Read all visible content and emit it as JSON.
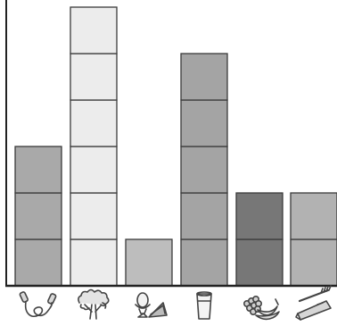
{
  "chart_data": {
    "type": "bar",
    "title": "",
    "xlabel": "",
    "ylabel": "",
    "categories": [
      "jump-rope",
      "broccoli",
      "egg-and-sandwich",
      "glass-of-milk",
      "bananas",
      "toothbrush-and-toothpaste"
    ],
    "values": [
      3,
      6,
      1,
      5,
      2,
      2
    ],
    "ylim": [
      0,
      6
    ],
    "grid": false,
    "bar_fills": [
      "#a9a9a9",
      "#ececec",
      "#bdbdbd",
      "#a4a4a4",
      "#777777",
      "#b2b2b2"
    ],
    "icons": [
      "jump-rope-icon",
      "broccoli-icon",
      "egg-sandwich-icon",
      "milk-glass-icon",
      "bananas-icon",
      "toothbrush-icon"
    ],
    "colors": {
      "axis": "#222222",
      "segment_stroke": "#3a3a3a",
      "icon_stroke": "#444444"
    }
  }
}
